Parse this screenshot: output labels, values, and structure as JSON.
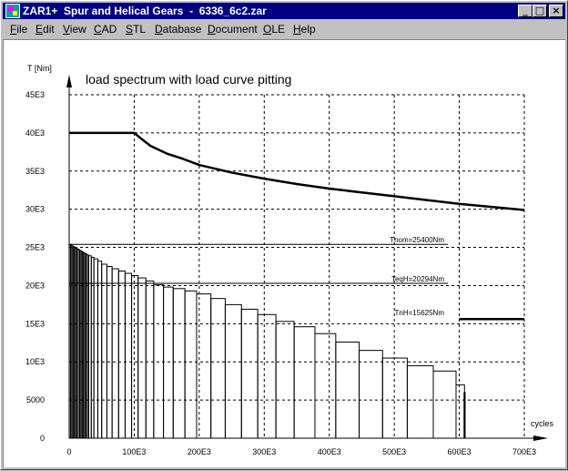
{
  "window": {
    "title": "ZAR1+  Spur and Helical Gears  -  6336_6c2.zar",
    "controls": {
      "minimize": "_",
      "maximize": "□",
      "close": "×"
    }
  },
  "menu": [
    {
      "label": "File",
      "accel": "F",
      "rest": "ile"
    },
    {
      "label": "Edit",
      "accel": "E",
      "rest": "dit"
    },
    {
      "label": "View",
      "accel": "V",
      "rest": "iew"
    },
    {
      "label": "CAD",
      "accel": "C",
      "rest": "AD"
    },
    {
      "label": "STL",
      "accel": "S",
      "rest": "TL"
    },
    {
      "label": "Database",
      "accel": "D",
      "rest": "atabase"
    },
    {
      "label": "Document",
      "accel": "D",
      "rest": "ocument"
    },
    {
      "label": "OLE",
      "accel": "O",
      "rest": "LE"
    },
    {
      "label": "Help",
      "accel": "H",
      "rest": "elp"
    }
  ],
  "chart_data": {
    "type": "line",
    "title": "load spectrum with load curve pitting",
    "ylabel": "T [Nm]",
    "xlabel": "cycles",
    "xlim": [
      0,
      700000
    ],
    "ylim": [
      0,
      45000
    ],
    "x_ticks": [
      0,
      100000,
      200000,
      300000,
      400000,
      500000,
      600000,
      700000
    ],
    "x_tick_labels": [
      "0",
      "100E3",
      "200E3",
      "300E3",
      "400E3",
      "500E3",
      "600E3",
      "700E3"
    ],
    "y_ticks": [
      0,
      5000,
      10000,
      15000,
      20000,
      25000,
      30000,
      35000,
      40000,
      45000
    ],
    "y_tick_labels": [
      "0",
      "5000",
      "10E3",
      "15E3",
      "20E3",
      "25E3",
      "30E3",
      "35E3",
      "40E3",
      "45E3"
    ],
    "grid": true,
    "series": [
      {
        "x": [
          0,
          100000,
          110000,
          125000,
          150000,
          175000,
          200000,
          250000,
          300000,
          350000,
          400000,
          450000,
          500000,
          550000,
          600000,
          650000,
          700000
        ],
        "y": [
          40000,
          40000,
          39300,
          38300,
          37300,
          36600,
          35800,
          34800,
          34000,
          33300,
          32700,
          32200,
          31700,
          31200,
          30700,
          30300,
          29900
        ]
      },
      {
        "x": [
          600000,
          700000
        ],
        "y": [
          15600,
          15600
        ]
      }
    ],
    "spectrum": {
      "x": [
        0,
        2000,
        4000,
        6000,
        8000,
        10000,
        12000,
        14000,
        16000,
        18000,
        20000,
        22000,
        24000,
        26000,
        28000,
        30000,
        34000,
        38000,
        44000,
        50000,
        58000,
        66000,
        76000,
        86000,
        96000,
        106000,
        118000,
        130000,
        145000,
        160000,
        178000,
        196000,
        218000,
        240000,
        265000,
        290000,
        318000,
        346000,
        378000,
        410000,
        446000,
        482000,
        520000,
        560000,
        595000,
        608000,
        609000
      ],
      "y": [
        25400,
        25300,
        25200,
        25100,
        25000,
        24900,
        24800,
        24700,
        24600,
        24500,
        24400,
        24300,
        24200,
        24100,
        24000,
        23900,
        23700,
        23500,
        23200,
        22800,
        22500,
        22200,
        21900,
        21600,
        21300,
        21000,
        20600,
        20100,
        19800,
        19600,
        19300,
        18900,
        18300,
        17500,
        16900,
        16200,
        15300,
        14600,
        13700,
        12600,
        11500,
        10500,
        9500,
        8800,
        7000,
        6000,
        0
      ]
    },
    "reference_lines": [
      {
        "y": 25400,
        "label": "Tnom=25400Nm"
      },
      {
        "y": 20294,
        "label": "TeqH=20294Nm"
      }
    ],
    "annotations": [
      {
        "x": 600000,
        "y": 15625,
        "text": "TnH=15625Nm"
      }
    ]
  }
}
